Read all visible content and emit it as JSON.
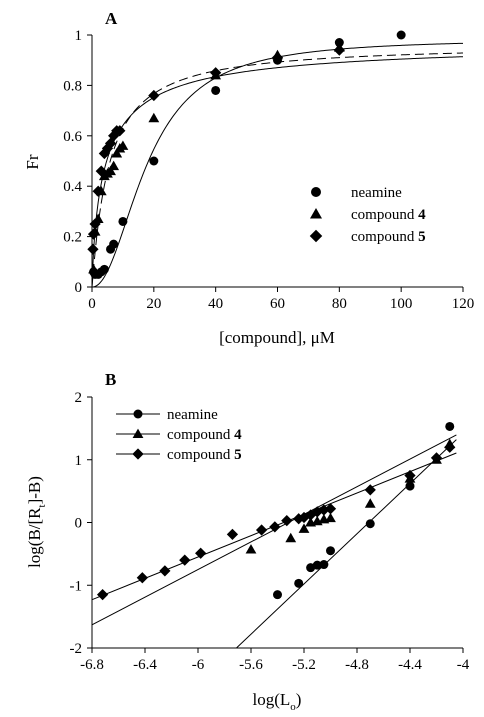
{
  "chart_data": [
    {
      "panel": "A",
      "type": "scatter",
      "xlabel": "[compound], μM",
      "ylabel": "Fr",
      "xlim": [
        0,
        120
      ],
      "ylim": [
        0,
        1
      ],
      "xticks": [
        0,
        20,
        40,
        60,
        80,
        100,
        120
      ],
      "yticks": [
        0,
        0.2,
        0.4,
        0.6,
        0.8,
        1
      ],
      "xtick_labels": [
        "0",
        "20",
        "40",
        "60",
        "80",
        "100",
        "120"
      ],
      "ytick_labels": [
        "0",
        "0.2",
        "0.4",
        "0.6",
        "0.8",
        "1"
      ],
      "legend_position": "lower-right",
      "series": [
        {
          "name": "neamine",
          "legend_name": "neamine",
          "legend_bold": "",
          "marker": "circle",
          "fit_dash": "",
          "x": [
            0.5,
            1,
            2,
            3,
            4,
            6,
            7,
            10,
            20,
            40,
            60,
            80,
            100
          ],
          "y": [
            0.06,
            0.05,
            0.05,
            0.06,
            0.07,
            0.15,
            0.17,
            0.26,
            0.5,
            0.78,
            0.9,
            0.97,
            1.0
          ],
          "fit": {
            "model": "hill",
            "Bmax": 0.985,
            "K": 18,
            "n": 2.1
          }
        },
        {
          "name": "compound 4",
          "legend_name": "compound ",
          "legend_bold": "4",
          "marker": "triangle",
          "fit_dash": "9 5",
          "x": [
            0.5,
            1,
            2,
            3,
            4,
            5,
            6,
            7,
            8,
            9,
            10,
            20,
            40,
            60,
            80
          ],
          "y": [
            0.07,
            0.22,
            0.27,
            0.38,
            0.44,
            0.45,
            0.46,
            0.48,
            0.53,
            0.55,
            0.56,
            0.67,
            0.84,
            0.92,
            0.95
          ],
          "fit": {
            "model": "hill",
            "Bmax": 0.965,
            "K": 5.5,
            "n": 1.05
          }
        },
        {
          "name": "compound 5",
          "legend_name": "compound ",
          "legend_bold": "5",
          "marker": "diamond",
          "fit_dash": "",
          "x": [
            0.3,
            0.5,
            1,
            2,
            3,
            4,
            5,
            6,
            7,
            8,
            9,
            20,
            40,
            60,
            80
          ],
          "y": [
            0.15,
            0.21,
            0.25,
            0.38,
            0.46,
            0.53,
            0.55,
            0.57,
            0.6,
            0.62,
            0.62,
            0.76,
            0.85,
            0.91,
            0.94
          ],
          "fit": {
            "model": "hill",
            "Bmax": 0.98,
            "K": 4.5,
            "n": 0.8
          }
        }
      ]
    },
    {
      "panel": "B",
      "type": "scatter",
      "xlabel": "log(L",
      "xlabel_sub": "o",
      "xlabel_end": ")",
      "ylabel_pre": "log(B/[R",
      "ylabel_sub": "t",
      "ylabel_post": "]-B)",
      "xlim": [
        -6.8,
        -4.0
      ],
      "ylim": [
        -2,
        2
      ],
      "xticks": [
        -6.8,
        -6.4,
        -6.0,
        -5.6,
        -5.2,
        -4.8,
        -4.4,
        -4.0
      ],
      "yticks": [
        -2,
        -1,
        0,
        1,
        2
      ],
      "xtick_labels": [
        "-6.8",
        "-6.4",
        "-6",
        "-5.6",
        "-5.2",
        "-4.8",
        "-4.4",
        "-4"
      ],
      "ytick_labels": [
        "-2",
        "-1",
        "0",
        "1",
        "2"
      ],
      "legend_position": "upper-left",
      "series": [
        {
          "name": "neamine",
          "legend_name": "neamine",
          "legend_bold": "",
          "marker": "circle",
          "x": [
            -5.4,
            -5.24,
            -5.15,
            -5.1,
            -5.05,
            -5.0,
            -4.7,
            -4.4,
            -4.1
          ],
          "y": [
            -1.15,
            -0.97,
            -0.72,
            -0.68,
            -0.67,
            -0.45,
            -0.02,
            0.58,
            1.53
          ],
          "fit": {
            "model": "linear",
            "slope": 2.0,
            "intercept": 9.42,
            "x_from": -5.74,
            "x_to": -4.05
          }
        },
        {
          "name": "compound 4",
          "legend_name": "compound ",
          "legend_bold": "4",
          "marker": "triangle",
          "x": [
            -5.6,
            -5.3,
            -5.2,
            -5.15,
            -5.1,
            -5.05,
            -5.0,
            -4.7,
            -4.4,
            -4.2,
            -4.1
          ],
          "y": [
            -0.43,
            -0.25,
            -0.1,
            0.0,
            0.02,
            0.05,
            0.07,
            0.3,
            0.7,
            1.0,
            1.25
          ],
          "fit": {
            "model": "linear",
            "slope": 1.1,
            "intercept": 5.85,
            "x_from": -6.8,
            "x_to": -4.05
          }
        },
        {
          "name": "compound 5",
          "legend_name": "compound ",
          "legend_bold": "5",
          "marker": "diamond",
          "x": [
            -6.72,
            -6.42,
            -6.25,
            -6.1,
            -5.98,
            -5.74,
            -5.52,
            -5.42,
            -5.33,
            -5.24,
            -5.2,
            -5.15,
            -5.1,
            -5.05,
            -5.0,
            -4.7,
            -4.4,
            -4.2,
            -4.1
          ],
          "y": [
            -1.15,
            -0.88,
            -0.77,
            -0.6,
            -0.49,
            -0.19,
            -0.12,
            -0.07,
            0.03,
            0.06,
            0.08,
            0.12,
            0.17,
            0.2,
            0.22,
            0.52,
            0.75,
            1.03,
            1.2
          ],
          "fit": {
            "model": "linear",
            "slope": 0.85,
            "intercept": 4.55,
            "x_from": -6.8,
            "x_to": -4.05
          }
        }
      ]
    }
  ]
}
